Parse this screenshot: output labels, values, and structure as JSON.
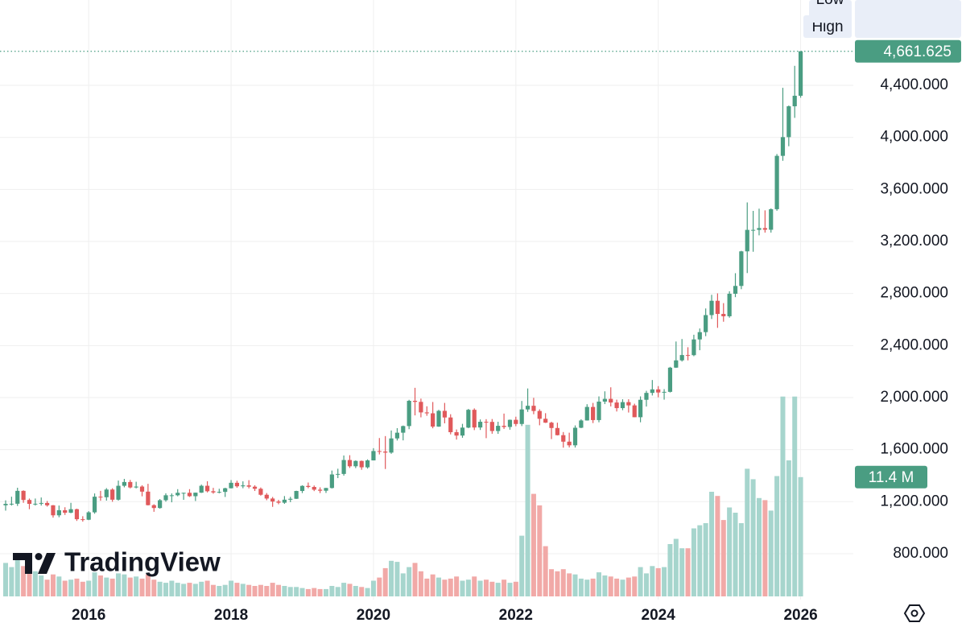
{
  "chart_data": {
    "type": "candlestick",
    "brand": "TradingView",
    "up_color": "#4a9d82",
    "down_color": "#e0595b",
    "volume_up_color": "#a6d5cd",
    "volume_down_color": "#f1a9a7",
    "grid": true,
    "ylim": [
      447,
      5056
    ],
    "yticks": [
      {
        "value": 800,
        "label": "800.000"
      },
      {
        "value": 1200,
        "label": "1,200.000"
      },
      {
        "value": 1600,
        "label": "1,600.000"
      },
      {
        "value": 2000,
        "label": "2,000.000"
      },
      {
        "value": 2400,
        "label": "2,400.000"
      },
      {
        "value": 2800,
        "label": "2,800.000"
      },
      {
        "value": 3200,
        "label": "3,200.000"
      },
      {
        "value": 3600,
        "label": "3,600.000"
      },
      {
        "value": 4000,
        "label": "4,000.000"
      },
      {
        "value": 4400,
        "label": "4,400.000"
      }
    ],
    "high_title": "High",
    "high": [
      1210,
      1238,
      1307,
      1287,
      1224,
      1224,
      1232,
      1205,
      1174,
      1170,
      1157,
      1191,
      1146,
      1088,
      1127,
      1263,
      1283,
      1304,
      1303,
      1362,
      1375,
      1367,
      1353,
      1326,
      1337,
      1180,
      1220,
      1264,
      1263,
      1296,
      1269,
      1296,
      1270,
      1331,
      1357,
      1306,
      1299,
      1307,
      1366,
      1361,
      1356,
      1365,
      1326,
      1309,
      1266,
      1236,
      1214,
      1243,
      1237,
      1284,
      1326,
      1347,
      1324,
      1310,
      1306,
      1439,
      1453,
      1555,
      1557,
      1517,
      1516,
      1525,
      1611,
      1689,
      1704,
      1747,
      1765,
      1785,
      1983,
      2075,
      1992,
      1933,
      1966,
      1906,
      1959,
      1872,
      1755,
      1798,
      1913,
      1917,
      1832,
      1834,
      1835,
      1814,
      1877,
      1831,
      1853,
      1974,
      2070,
      1998,
      1910,
      1880,
      1814,
      1807,
      1735,
      1730,
      1786,
      1833,
      1949,
      1959,
      2009,
      2048,
      2079,
      1984,
      1987,
      1987,
      1953,
      2009,
      2052,
      2135,
      2088,
      2065,
      2236,
      2431,
      2450,
      2387,
      2483,
      2531,
      2685,
      2790,
      2801,
      2726,
      2817,
      2956,
      3128,
      3500,
      3435,
      3452,
      3439,
      3454,
      3872,
      4381,
      4245,
      4550,
      4661.84
    ],
    "low_title": "Low",
    "low": [
      1131,
      1170,
      1167,
      1191,
      1142,
      1170,
      1170,
      1162,
      1077,
      1080,
      1098,
      1111,
      1052,
      1046.459,
      1058,
      1107,
      1207,
      1208,
      1199,
      1208,
      1310,
      1302,
      1302,
      1241,
      1171,
      1122,
      1146,
      1200,
      1195,
      1241,
      1214,
      1236,
      1205,
      1267,
      1271,
      1261,
      1264,
      1236,
      1302,
      1307,
      1303,
      1302,
      1282,
      1246,
      1211,
      1160,
      1180,
      1183,
      1196,
      1221,
      1266,
      1303,
      1281,
      1266,
      1267,
      1301,
      1381,
      1400,
      1459,
      1458,
      1445,
      1454,
      1517,
      1563,
      1451,
      1568,
      1670,
      1671,
      1757,
      1863,
      1848,
      1860,
      1764,
      1775,
      1802,
      1717,
      1677,
      1691,
      1765,
      1750,
      1751,
      1688,
      1722,
      1721,
      1759,
      1753,
      1780,
      1781,
      1890,
      1872,
      1787,
      1805,
      1681,
      1709,
      1615,
      1617,
      1616,
      1765,
      1823,
      1804,
      1810,
      1950,
      1932,
      1893,
      1903,
      1885,
      1849,
      1810,
      1931,
      2016,
      2002,
      1984,
      2039,
      2228,
      2277,
      2286,
      2318,
      2364,
      2472,
      2604,
      2536,
      2583,
      2614,
      2772,
      2833,
      2957,
      3121,
      3247,
      3268,
      3268,
      3436,
      3820,
      3932,
      4150,
      4305
    ],
    "last_close_label": "4,661.625",
    "last_volume_label": "11.4 M",
    "categories": [
      null,
      null,
      null,
      null,
      null,
      null,
      null,
      null,
      null,
      null,
      null,
      null,
      null,
      null,
      "2016",
      null,
      null,
      null,
      null,
      null,
      null,
      null,
      null,
      null,
      null,
      null,
      null,
      null,
      null,
      null,
      null,
      null,
      null,
      null,
      null,
      null,
      null,
      null,
      "2018",
      null,
      null,
      null,
      null,
      null,
      null,
      null,
      null,
      null,
      null,
      null,
      null,
      null,
      null,
      null,
      null,
      null,
      null,
      null,
      null,
      null,
      null,
      null,
      "2020",
      null,
      null,
      null,
      null,
      null,
      null,
      null,
      null,
      null,
      null,
      null,
      null,
      null,
      null,
      null,
      null,
      null,
      null,
      null,
      null,
      null,
      null,
      null,
      "2022",
      null,
      null,
      null,
      null,
      null,
      null,
      null,
      null,
      null,
      null,
      null,
      null,
      null,
      null,
      null,
      null,
      null,
      null,
      null,
      null,
      null,
      null,
      null,
      "2024",
      null,
      null,
      null,
      null,
      null,
      null,
      null,
      null,
      null,
      null,
      null,
      null,
      null,
      null,
      null,
      null,
      null,
      null,
      null,
      null,
      null,
      null,
      null,
      "2026"
    ],
    "open": [
      1172,
      1183,
      1184,
      1283,
      1213,
      1183,
      1184,
      1190,
      1172,
      1095,
      1134,
      1115,
      1142,
      1065,
      1061,
      1118,
      1238,
      1234,
      1293,
      1215,
      1322,
      1351,
      1309,
      1316,
      1277,
      1173,
      1151,
      1211,
      1249,
      1249,
      1268,
      1268,
      1242,
      1269,
      1322,
      1280,
      1271,
      1275,
      1303,
      1345,
      1318,
      1325,
      1315,
      1299,
      1253,
      1224,
      1201,
      1192,
      1215,
      1222,
      1282,
      1321,
      1313,
      1292,
      1284,
      1305,
      1409,
      1413,
      1520,
      1472,
      1513,
      1464,
      1517,
      1589,
      1585,
      1577,
      1686,
      1730,
      1781,
      1975,
      1967,
      1886,
      1879,
      1777,
      1898,
      1847,
      1734,
      1708,
      1769,
      1906,
      1770,
      1814,
      1813,
      1743,
      1783,
      1774,
      1829,
      1797,
      1909,
      1937,
      1897,
      1837,
      1807,
      1766,
      1711,
      1661,
      1633,
      1768,
      1824,
      1928,
      1827,
      1969,
      1990,
      1962,
      1919,
      1965,
      1940,
      1849,
      1983,
      2036,
      2063,
      2039,
      2044,
      2230,
      2286,
      2327,
      2326,
      2447,
      2503,
      2634,
      2744,
      2643,
      2625,
      2798,
      2858,
      3124,
      3289,
      3289,
      3303,
      3290,
      3448,
      3858,
      4002,
      4239,
      4320
    ],
    "close": [
      1183,
      1184,
      1283,
      1213,
      1183,
      1184,
      1190,
      1172,
      1095,
      1134,
      1115,
      1142,
      1065,
      1061,
      1118,
      1238,
      1234,
      1293,
      1215,
      1322,
      1351,
      1309,
      1316,
      1277,
      1173,
      1151,
      1211,
      1249,
      1249,
      1268,
      1268,
      1242,
      1269,
      1322,
      1280,
      1271,
      1275,
      1303,
      1345,
      1318,
      1325,
      1315,
      1299,
      1253,
      1224,
      1201,
      1192,
      1215,
      1222,
      1282,
      1321,
      1313,
      1292,
      1284,
      1305,
      1409,
      1413,
      1520,
      1472,
      1513,
      1464,
      1517,
      1589,
      1585,
      1577,
      1686,
      1730,
      1781,
      1975,
      1967,
      1886,
      1879,
      1777,
      1898,
      1847,
      1734,
      1708,
      1769,
      1906,
      1770,
      1814,
      1813,
      1743,
      1783,
      1774,
      1829,
      1797,
      1909,
      1937,
      1897,
      1837,
      1807,
      1766,
      1711,
      1661,
      1633,
      1768,
      1824,
      1928,
      1827,
      1969,
      1990,
      1962,
      1919,
      1965,
      1940,
      1849,
      1983,
      2036,
      2063,
      2039,
      2044,
      2230,
      2286,
      2327,
      2326,
      2447,
      2503,
      2634,
      2744,
      2643,
      2625,
      2798,
      2858,
      3124,
      3289,
      3289,
      3303,
      3290,
      3448,
      3858,
      4002,
      4239,
      4320,
      4661.625
    ],
    "volume": [
      3.2,
      2.8,
      3.5,
      2.9,
      2.6,
      2.4,
      2.0,
      1.6,
      2.1,
      1.9,
      1.5,
      1.6,
      1.7,
      1.4,
      1.5,
      2.3,
      2.0,
      1.8,
      1.7,
      2.2,
      2.1,
      1.8,
      1.9,
      1.7,
      2.1,
      1.6,
      1.4,
      1.3,
      1.5,
      1.3,
      1.2,
      1.3,
      1.2,
      1.4,
      1.5,
      1.1,
      1.0,
      1.1,
      1.5,
      1.3,
      1.2,
      1.1,
      1.0,
      1.1,
      1.0,
      1.3,
      1.1,
      1.0,
      0.9,
      0.9,
      0.8,
      0.7,
      0.8,
      0.7,
      0.7,
      1.0,
      0.9,
      1.3,
      1.2,
      1.0,
      0.9,
      0.8,
      1.5,
      1.8,
      2.7,
      3.4,
      3.3,
      2.2,
      2.8,
      3.2,
      2.4,
      1.7,
      2.1,
      1.8,
      1.6,
      1.7,
      1.9,
      1.5,
      1.6,
      1.9,
      1.5,
      1.6,
      1.4,
      1.3,
      1.6,
      1.3,
      1.4,
      5.8,
      16.4,
      9.8,
      8.7,
      4.8,
      2.6,
      2.4,
      2.6,
      2.2,
      2.1,
      1.7,
      1.6,
      1.7,
      2.3,
      2.0,
      1.9,
      1.7,
      1.6,
      1.8,
      1.9,
      2.8,
      2.2,
      2.9,
      2.7,
      2.8,
      5.0,
      5.5,
      4.6,
      4.6,
      6.5,
      6.8,
      7.0,
      10.0,
      9.6,
      7.3,
      8.5,
      8.0,
      7.0,
      12.2,
      11.2,
      9.4,
      9.2,
      8.2,
      11.5,
      19.1,
      13.0,
      19.1,
      11.4
    ]
  }
}
